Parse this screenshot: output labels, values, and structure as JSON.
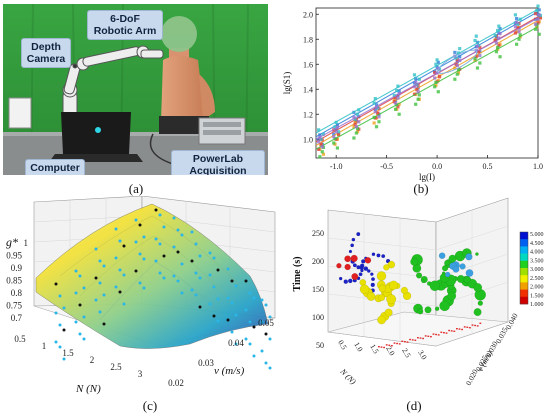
{
  "panel_a": {
    "caption": "(a)",
    "labels": {
      "robot_arm": "6-DoF Robotic Arm",
      "depth_camera": "Depth Camera",
      "computer": "Computer",
      "powerlab": "PowerLab Acquisition System"
    }
  },
  "panel_b": {
    "caption": "(b)",
    "chart_data": {
      "type": "scatter",
      "xlabel": "lg(I)",
      "ylabel": "lg(S1)",
      "xlim": [
        -1.2,
        1.0
      ],
      "ylim": [
        0.85,
        2.05
      ],
      "x_ticks": [
        "-1.0",
        "-0.5",
        "0.0",
        "0.5",
        "1.0"
      ],
      "y_ticks": [
        "1.0",
        "1.2",
        "1.4",
        "1.6",
        "1.8",
        "2.0"
      ],
      "grid": false,
      "series": [
        {
          "color": "#2f7fd8",
          "line": [
            [
              -1.2,
              1.02
            ],
            [
              1.0,
              2.02
            ]
          ],
          "points": [
            [
              -1.15,
              1.0
            ],
            [
              -1.0,
              1.08
            ],
            [
              -0.8,
              1.18
            ],
            [
              -0.6,
              1.24
            ],
            [
              -0.4,
              1.35
            ],
            [
              -0.2,
              1.45
            ],
            [
              0.0,
              1.58
            ],
            [
              0.2,
              1.66
            ],
            [
              0.4,
              1.74
            ],
            [
              0.6,
              1.85
            ],
            [
              0.8,
              1.93
            ],
            [
              1.0,
              2.0
            ]
          ]
        },
        {
          "color": "#f0a020",
          "line": [
            [
              -1.2,
              0.95
            ],
            [
              1.0,
              1.95
            ]
          ],
          "points": [
            [
              -1.15,
              0.92
            ],
            [
              -1.0,
              1.0
            ],
            [
              -0.8,
              1.1
            ],
            [
              -0.6,
              1.17
            ],
            [
              -0.4,
              1.28
            ],
            [
              -0.2,
              1.36
            ],
            [
              0.0,
              1.47
            ],
            [
              0.2,
              1.57
            ],
            [
              0.4,
              1.67
            ],
            [
              0.6,
              1.76
            ],
            [
              0.8,
              1.86
            ],
            [
              1.0,
              1.94
            ]
          ]
        },
        {
          "color": "#e04040",
          "line": [
            [
              -1.2,
              0.98
            ],
            [
              1.0,
              1.98
            ]
          ],
          "points": [
            [
              -1.15,
              0.96
            ],
            [
              -1.0,
              1.04
            ],
            [
              -0.8,
              1.12
            ],
            [
              -0.6,
              1.21
            ],
            [
              -0.4,
              1.3
            ],
            [
              -0.2,
              1.4
            ],
            [
              0.0,
              1.5
            ],
            [
              0.2,
              1.6
            ],
            [
              0.4,
              1.7
            ],
            [
              0.6,
              1.79
            ],
            [
              0.8,
              1.89
            ],
            [
              1.0,
              1.97
            ]
          ]
        },
        {
          "color": "#40c040",
          "line": [
            [
              -1.2,
              0.92
            ],
            [
              1.0,
              1.9
            ]
          ],
          "points": [
            [
              -1.15,
              0.9
            ],
            [
              -1.0,
              0.97
            ],
            [
              -0.8,
              1.05
            ],
            [
              -0.6,
              1.14
            ],
            [
              -0.4,
              1.24
            ],
            [
              -0.2,
              1.32
            ],
            [
              0.0,
              1.42
            ],
            [
              0.2,
              1.52
            ],
            [
              0.4,
              1.61
            ],
            [
              0.6,
              1.7
            ],
            [
              0.8,
              1.8
            ],
            [
              1.0,
              1.88
            ]
          ]
        },
        {
          "color": "#30c0c8",
          "line": [
            [
              -1.2,
              1.05
            ],
            [
              1.0,
              2.04
            ]
          ],
          "points": [
            [
              -1.15,
              1.04
            ],
            [
              -1.0,
              1.1
            ],
            [
              -0.8,
              1.2
            ],
            [
              -0.6,
              1.29
            ],
            [
              -0.4,
              1.39
            ],
            [
              -0.2,
              1.48
            ],
            [
              0.0,
              1.6
            ],
            [
              0.2,
              1.69
            ],
            [
              0.4,
              1.79
            ],
            [
              0.6,
              1.87
            ],
            [
              0.8,
              1.96
            ],
            [
              1.0,
              2.03
            ]
          ]
        },
        {
          "color": "#9a70d0",
          "line": [
            [
              -1.2,
              1.0
            ],
            [
              1.0,
              1.97
            ]
          ],
          "points": [
            [
              -1.15,
              0.98
            ],
            [
              -1.0,
              1.06
            ],
            [
              -0.8,
              1.14
            ],
            [
              -0.6,
              1.22
            ],
            [
              -0.4,
              1.33
            ],
            [
              -0.2,
              1.42
            ],
            [
              0.0,
              1.53
            ],
            [
              0.2,
              1.63
            ],
            [
              0.4,
              1.71
            ],
            [
              0.6,
              1.81
            ],
            [
              0.8,
              1.9
            ],
            [
              1.0,
              1.96
            ]
          ]
        }
      ]
    }
  },
  "panel_c": {
    "caption": "(c)",
    "chart_data": {
      "type": "surface3d",
      "zlabel": "g*",
      "xlabel": "N (N)",
      "ylabel": "v (m/s)",
      "z_ticks": [
        "1",
        "0.95",
        "0.9",
        "0.85",
        "0.8",
        "0.75",
        "0.7"
      ],
      "x_ticks": [
        "0.5",
        "1",
        "1.5",
        "2",
        "2.5",
        "3"
      ],
      "y_ticks": [
        "0.02",
        "0.03",
        "0.04",
        "0.05"
      ],
      "zlim": [
        0.7,
        1.0
      ],
      "xlim": [
        0.5,
        3.0
      ],
      "ylim": [
        0.02,
        0.05
      ],
      "peak": {
        "N": 1.5,
        "v": 0.035,
        "g": 1.0
      }
    }
  },
  "panel_d": {
    "caption": "(d)",
    "chart_data": {
      "type": "scatter3d",
      "zlabel": "Time (s)",
      "xlabel": "N (N)",
      "ylabel": "v (m/s)",
      "z_ticks": [
        "250",
        "200",
        "150",
        "100",
        "50"
      ],
      "x_ticks": [
        "0.5",
        "1.0",
        "1.5",
        "2.0",
        "2.5",
        "3.0"
      ],
      "y_ticks": [
        "0.020",
        "0.025",
        "0.030",
        "0.035",
        "0.040"
      ],
      "zlim": [
        50,
        250
      ],
      "colorbar_ticks": [
        "5.000",
        "4.500",
        "4.000",
        "3.500",
        "3.000",
        "2.500",
        "2.000",
        "1.500",
        "1.000"
      ],
      "colorbar_colors": [
        "#0010d0",
        "#0060f0",
        "#00b0f0",
        "#00d8c0",
        "#20d020",
        "#a0e000",
        "#f0f000",
        "#f0a000",
        "#f03000",
        "#d00000"
      ],
      "clusters": [
        {
          "color": "#1a22c8",
          "count": 30
        },
        {
          "color": "#e8e000",
          "count": 25
        },
        {
          "color": "#20c020",
          "count": 45
        },
        {
          "color": "#3aa0e0",
          "count": 8
        },
        {
          "color": "#e02020",
          "count": 6
        }
      ]
    }
  }
}
